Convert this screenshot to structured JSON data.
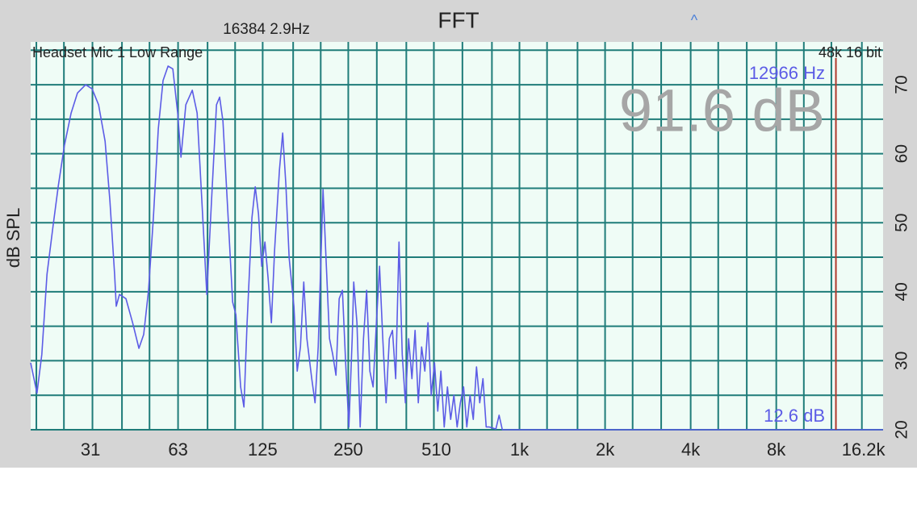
{
  "chart_data": {
    "type": "line",
    "title": "FFT",
    "subtitle": "16384  2.9Hz",
    "cursor_marker": "^",
    "source_label": "Headset Mic 1 Low Range",
    "format_label": "48k 16 bit",
    "ylabel": "dB SPL",
    "level_readout": "91.6 dB",
    "floor_readout": "12.6 dB",
    "cursor": {
      "x": 12966,
      "label": "12966 Hz",
      "color": "#b03a2e"
    },
    "x_scale": "log",
    "xlim": [
      19.1,
      19000
    ],
    "xticks": [
      31,
      63,
      125,
      250,
      510,
      {
        "value": 1000,
        "label": "1k"
      },
      {
        "value": 2000,
        "label": "2k"
      },
      {
        "value": 4000,
        "label": "4k"
      },
      {
        "value": 8000,
        "label": "8k"
      },
      {
        "value": 16200,
        "label": "16.2k"
      }
    ],
    "xgrid": [
      20,
      25,
      31.5,
      40,
      50,
      63,
      80,
      100,
      125,
      160,
      200,
      250,
      315,
      400,
      500,
      630,
      800,
      1000,
      1250,
      1600,
      2000,
      2500,
      3150,
      4000,
      5000,
      6300,
      8000,
      10000,
      12500,
      16000
    ],
    "ylim": [
      20,
      76.2
    ],
    "yticks": [
      20,
      30,
      40,
      50,
      60,
      70
    ],
    "ygrid": [
      25,
      35,
      45,
      55,
      65,
      75
    ],
    "grid": true,
    "color": "#5c5ce6",
    "x": [
      19.1,
      20.1,
      20.9,
      21.8,
      22.9,
      23.9,
      25.1,
      26.5,
      27.9,
      29.8,
      31.4,
      33.1,
      34.9,
      36.3,
      37.7,
      38.2,
      39.2,
      41.3,
      43.6,
      45.9,
      47.7,
      49.6,
      51.6,
      53.7,
      55.8,
      58.1,
      60.4,
      62.8,
      64.5,
      67.1,
      70.7,
      73.5,
      76.4,
      79.5,
      82.6,
      86.0,
      88.2,
      90.6,
      94.2,
      98.0,
      100.6,
      104.6,
      107.4,
      110.2,
      114.6,
      117.7,
      120.8,
      124,
      127.3,
      130.6,
      134.1,
      137.7,
      143.2,
      147.0,
      150.9,
      154.9,
      161.0,
      165.3,
      169.7,
      174.3,
      178.8,
      186,
      191,
      196,
      201.2,
      203.8,
      209.3,
      214.7,
      220.4,
      226.3,
      232.3,
      238.4,
      244.7,
      251.3,
      258.0,
      261.3,
      268.2,
      275.3,
      282.7,
      290.1,
      297.8,
      305.7,
      313.9,
      322.1,
      330.7,
      339.5,
      348.5,
      357.6,
      367.1,
      376.9,
      387.0,
      397.0,
      407.6,
      418.5,
      429.4,
      440.9,
      452.6,
      464.7,
      476.8,
      489.5,
      502.5,
      516.0,
      529.4,
      543.6,
      558.0,
      572.9,
      587.9,
      603.5,
      619.6,
      635.8,
      652.7,
      670.1,
      687.9,
      705.9,
      724.7,
      744.0,
      763.8,
      783.7,
      826.1,
      848.1,
      870.2,
      19000
    ],
    "values": [
      29.7,
      25.3,
      30.9,
      42.5,
      49.6,
      55.4,
      61.2,
      65.9,
      68.8,
      70.0,
      69.4,
      67.1,
      61.8,
      53.1,
      42.5,
      37.9,
      39.6,
      39.0,
      35.5,
      31.8,
      33.8,
      40.2,
      50.7,
      63.6,
      70.6,
      72.7,
      72.3,
      65.9,
      59.5,
      67.1,
      69.2,
      65.9,
      53.1,
      39.6,
      53.1,
      67.1,
      68.2,
      64.7,
      51.9,
      38.5,
      36.7,
      26.2,
      23.3,
      35.5,
      50.7,
      55.2,
      51.3,
      43.7,
      47.2,
      42.0,
      35.5,
      46.1,
      57.7,
      63.0,
      55.4,
      44.9,
      37.9,
      28.5,
      32.0,
      41.4,
      33.2,
      27.4,
      23.9,
      32.0,
      47.2,
      54.8,
      43.7,
      33.2,
      30.9,
      27.9,
      39.0,
      40.2,
      29.7,
      20.4,
      33.2,
      41.4,
      35.5,
      20.4,
      33.2,
      40.2,
      28.5,
      26.2,
      35.5,
      43.7,
      33.2,
      23.9,
      33.2,
      34.4,
      27.4,
      47.2,
      30.9,
      23.9,
      33.2,
      27.4,
      34.4,
      23.9,
      32.0,
      28.5,
      35.5,
      25.0,
      29.7,
      22.7,
      28.5,
      20.4,
      26.2,
      21.5,
      25.0,
      20.4,
      23.9,
      26.2,
      20.4,
      25.0,
      21.5,
      29.1,
      23.9,
      27.4,
      20.4,
      20.4,
      20.1,
      22.1,
      20,
      20
    ]
  }
}
